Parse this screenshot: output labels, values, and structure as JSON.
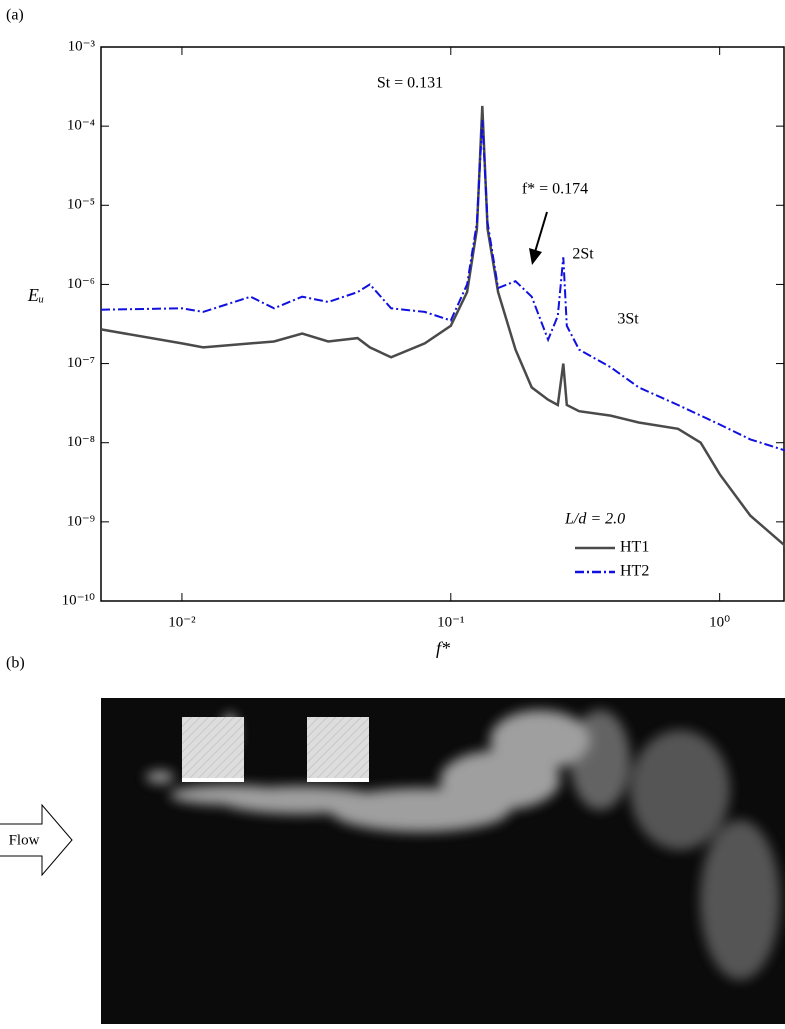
{
  "chart_data": {
    "type": "line",
    "x_label": "f*",
    "y_label": "Eᵤ",
    "x": [
      0.005,
      0.01,
      0.012,
      0.018,
      0.022,
      0.028,
      0.035,
      0.045,
      0.05,
      0.06,
      0.08,
      0.1,
      0.115,
      0.125,
      0.131,
      0.137,
      0.15,
      0.174,
      0.2,
      0.23,
      0.25,
      0.262,
      0.27,
      0.3,
      0.393,
      0.5,
      0.7,
      0.85,
      1.0,
      1.3,
      1.75
    ],
    "series": [
      {
        "name": "HT1",
        "color": "#4a4a4a",
        "dash": false,
        "values": [
          2.7e-07,
          1.8e-07,
          1.6e-07,
          1.8e-07,
          1.9e-07,
          2.4e-07,
          1.9e-07,
          2.1e-07,
          1.6e-07,
          1.2e-07,
          1.8e-07,
          3e-07,
          8e-07,
          5e-06,
          0.00018,
          5e-06,
          8e-07,
          1.5e-07,
          5e-08,
          3.5e-08,
          3e-08,
          1e-07,
          3e-08,
          2.5e-08,
          2.2e-08,
          1.8e-08,
          1.5e-08,
          1e-08,
          4e-09,
          1.2e-09,
          5e-10
        ]
      },
      {
        "name": "HT2",
        "color": "#1010e0",
        "dash": true,
        "values": [
          4.8e-07,
          5e-07,
          4.5e-07,
          7e-07,
          5e-07,
          7e-07,
          6e-07,
          8e-07,
          1e-06,
          5e-07,
          4.5e-07,
          3.5e-07,
          1e-06,
          6e-06,
          0.00012,
          6e-06,
          9e-07,
          1.1e-06,
          7e-07,
          2e-07,
          4e-07,
          2.2e-06,
          3e-07,
          1.5e-07,
          9e-08,
          5e-08,
          3e-08,
          2.2e-08,
          1.7e-08,
          1.1e-08,
          8e-09
        ]
      }
    ],
    "log_x": true,
    "log_y": true,
    "xlim": [
      0.005,
      1.75
    ],
    "ylim": [
      1e-10,
      0.001
    ],
    "xticks": [
      {
        "value": 0.01,
        "label": "10⁻²"
      },
      {
        "value": 0.1,
        "label": "10⁻¹"
      },
      {
        "value": 1,
        "label": "10⁰"
      }
    ],
    "yticks": [
      {
        "value": 1e-10,
        "label": "10⁻¹⁰"
      },
      {
        "value": 1e-09,
        "label": "10⁻⁹"
      },
      {
        "value": 1e-08,
        "label": "10⁻⁸"
      },
      {
        "value": 1e-07,
        "label": "10⁻⁷"
      },
      {
        "value": 1e-06,
        "label": "10⁻⁶"
      },
      {
        "value": 1e-05,
        "label": "10⁻⁵"
      },
      {
        "value": 0.0001,
        "label": "10⁻⁴"
      },
      {
        "value": 0.001,
        "label": "10⁻³"
      }
    ],
    "legend_title": "L/d = 2.0",
    "legend": "lower right",
    "annotations": [
      "St = 0.131",
      "f* = 0.174",
      "2St",
      "3St"
    ]
  },
  "panels": {
    "a": "(a)",
    "b": "(b)",
    "flow_label": "Flow"
  }
}
